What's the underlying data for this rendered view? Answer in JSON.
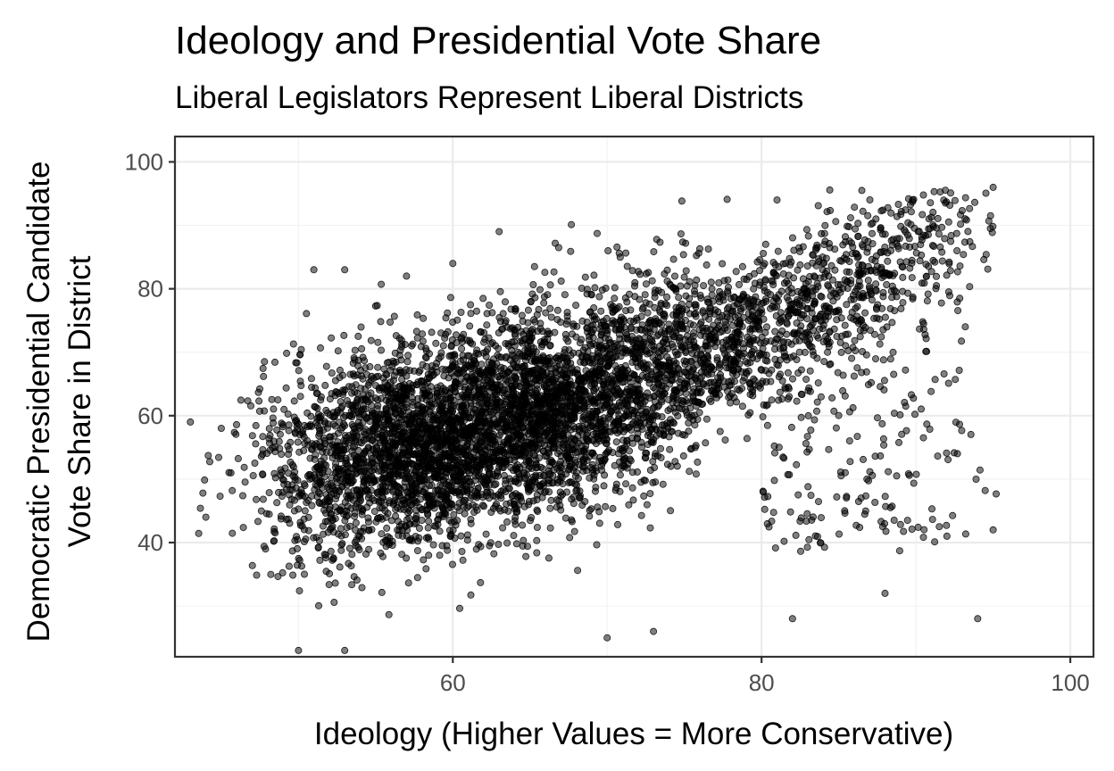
{
  "chart_data": {
    "type": "scatter",
    "title": "Ideology and Presidential Vote Share",
    "subtitle": "Liberal Legislators Represent Liberal Districts",
    "xlabel": "Ideology (Higher Values = More Conservative)",
    "ylabel": [
      "Democratic Presidential Candidate",
      "Vote Share in District"
    ],
    "xlim": [
      42,
      101.5
    ],
    "ylim": [
      22,
      104
    ],
    "x_ticks": [
      60,
      80,
      100
    ],
    "y_ticks": [
      40,
      60,
      80,
      100
    ],
    "x_tick_labels": [
      "60",
      "80",
      "100"
    ],
    "y_tick_labels": [
      "40",
      "60",
      "80",
      "100"
    ],
    "grid": true,
    "legend": "none",
    "point_color": "#000000",
    "point_alpha": 0.5,
    "point_count_estimate": 6000,
    "trend_anchors": [
      {
        "x": 48,
        "y": 51
      },
      {
        "x": 55,
        "y": 54
      },
      {
        "x": 62,
        "y": 58
      },
      {
        "x": 68,
        "y": 62
      },
      {
        "x": 74,
        "y": 67
      },
      {
        "x": 80,
        "y": 74
      },
      {
        "x": 86,
        "y": 82
      },
      {
        "x": 90,
        "y": 87
      },
      {
        "x": 95,
        "y": 91
      }
    ],
    "sample_points": [
      {
        "x": 43,
        "y": 59
      },
      {
        "x": 44,
        "y": 44
      },
      {
        "x": 45,
        "y": 58
      },
      {
        "x": 51,
        "y": 83
      },
      {
        "x": 53,
        "y": 83
      },
      {
        "x": 57,
        "y": 82
      },
      {
        "x": 60,
        "y": 84
      },
      {
        "x": 63,
        "y": 89
      },
      {
        "x": 50,
        "y": 23
      },
      {
        "x": 53,
        "y": 23
      },
      {
        "x": 70,
        "y": 25
      },
      {
        "x": 73,
        "y": 26
      },
      {
        "x": 81,
        "y": 94
      },
      {
        "x": 82,
        "y": 28
      },
      {
        "x": 88,
        "y": 32
      },
      {
        "x": 94,
        "y": 28
      },
      {
        "x": 95,
        "y": 96
      },
      {
        "x": 95,
        "y": 42
      }
    ]
  }
}
